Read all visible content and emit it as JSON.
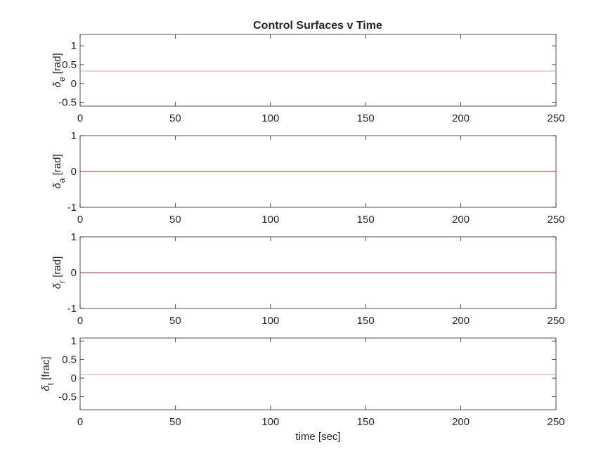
{
  "title": "Control Surfaces v Time",
  "chart_data": [
    {
      "type": "line",
      "ylabel": {
        "symbol": "δ",
        "sub": "e",
        "unit": " [rad]"
      },
      "xlim": [
        0,
        250
      ],
      "ylim": [
        -0.6,
        1.3
      ],
      "xticks": [
        0,
        50,
        100,
        150,
        200,
        250
      ],
      "yticks": [
        -0.5,
        0,
        0.5,
        1
      ],
      "series": [
        {
          "x": [
            0,
            250
          ],
          "y": [
            0.33,
            0.33
          ]
        }
      ],
      "line_color": "#e8a0a6",
      "grid": false
    },
    {
      "type": "line",
      "ylabel": {
        "symbol": "δ",
        "sub": "a",
        "unit": " [rad]"
      },
      "xlim": [
        0,
        250
      ],
      "ylim": [
        -1,
        1
      ],
      "xticks": [
        0,
        50,
        100,
        150,
        200,
        250
      ],
      "yticks": [
        -1,
        0,
        1
      ],
      "series": [
        {
          "x": [
            0,
            250
          ],
          "y": [
            0,
            0
          ]
        }
      ],
      "line_color": "#cc2222",
      "grid": false
    },
    {
      "type": "line",
      "ylabel": {
        "symbol": "δ",
        "sub": "r",
        "unit": " [rad]"
      },
      "xlim": [
        0,
        250
      ],
      "ylim": [
        -1,
        1
      ],
      "xticks": [
        0,
        50,
        100,
        150,
        200,
        250
      ],
      "yticks": [
        -1,
        0,
        1
      ],
      "series": [
        {
          "x": [
            0,
            250
          ],
          "y": [
            0,
            0
          ]
        }
      ],
      "line_color": "#cc2222",
      "grid": false
    },
    {
      "type": "line",
      "ylabel": {
        "symbol": "δ",
        "sub": "t",
        "unit": " [frac]"
      },
      "xlabel": "time [sec]",
      "xlim": [
        0,
        250
      ],
      "ylim": [
        -0.85,
        1.08
      ],
      "xticks": [
        0,
        50,
        100,
        150,
        200,
        250
      ],
      "yticks": [
        -0.5,
        0,
        0.5,
        1
      ],
      "series": [
        {
          "x": [
            0,
            250
          ],
          "y": [
            0.1,
            0.1
          ]
        }
      ],
      "line_color": "#e8a0a6",
      "grid": false
    }
  ]
}
